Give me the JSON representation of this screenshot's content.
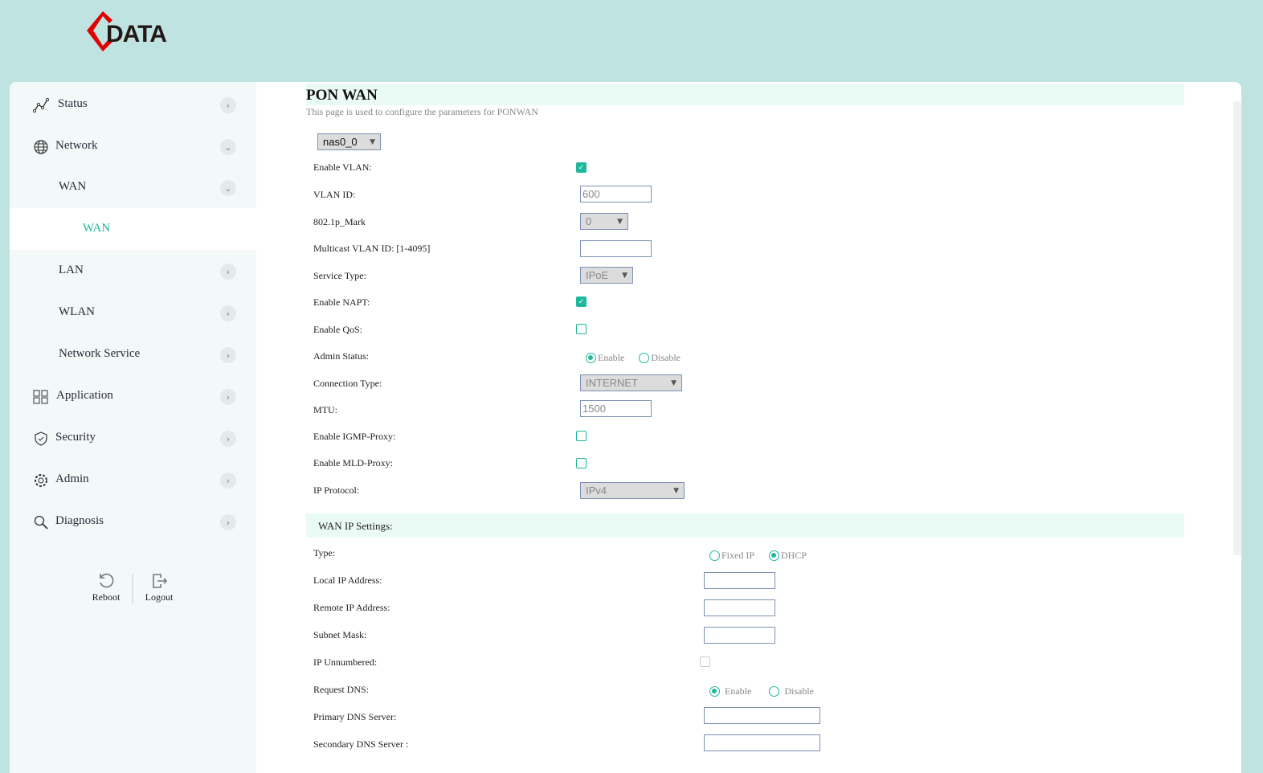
{
  "brand": {
    "logo_text": "DATA",
    "accent": "#e00000"
  },
  "colors": {
    "accent": "#1fb89a",
    "header_bg": "#bfe3e1"
  },
  "sidebar": {
    "items": [
      {
        "label": "Status",
        "icon": "status-chart-icon",
        "chevron": "right"
      },
      {
        "label": "Network",
        "icon": "globe-icon",
        "chevron": "down"
      },
      {
        "label": "WAN",
        "chevron": "down"
      },
      {
        "label": "WAN",
        "active": true
      },
      {
        "label": "LAN",
        "chevron": "right"
      },
      {
        "label": "WLAN",
        "chevron": "right"
      },
      {
        "label": "Network Service",
        "chevron": "right"
      },
      {
        "label": "Application",
        "icon": "grid-icon",
        "chevron": "right"
      },
      {
        "label": "Security",
        "icon": "shield-icon",
        "chevron": "right"
      },
      {
        "label": "Admin",
        "icon": "gear-icon",
        "chevron": "right"
      },
      {
        "label": "Diagnosis",
        "icon": "search-icon",
        "chevron": "right"
      }
    ],
    "reboot": "Reboot",
    "logout": "Logout"
  },
  "page": {
    "title": "PON WAN",
    "subtitle": "This page is used to configure the parameters for PONWAN",
    "interface": "nas0_0"
  },
  "form": {
    "enable_vlan": {
      "label": "Enable VLAN:",
      "checked": true
    },
    "vlan_id": {
      "label": "VLAN ID:",
      "value": "600"
    },
    "mark": {
      "label": "802.1p_Mark",
      "value": "0"
    },
    "mcast": {
      "label": "Multicast VLAN ID: [1-4095]",
      "value": ""
    },
    "service": {
      "label": "Service Type:",
      "value": "IPoE"
    },
    "napt": {
      "label": "Enable NAPT:",
      "checked": true
    },
    "qos": {
      "label": "Enable QoS:",
      "checked": false
    },
    "admin": {
      "label": "Admin Status:",
      "opt1": "Enable",
      "opt2": "Disable",
      "selected": "Enable"
    },
    "conn": {
      "label": "Connection Type:",
      "value": "INTERNET"
    },
    "mtu": {
      "label": "MTU:",
      "value": "1500"
    },
    "igmp": {
      "label": "Enable IGMP-Proxy:",
      "checked": false
    },
    "mld": {
      "label": "Enable MLD-Proxy:",
      "checked": false
    },
    "ipproto": {
      "label": "IP Protocol:",
      "value": "IPv4"
    }
  },
  "wanip": {
    "section": "WAN IP Settings:",
    "type": {
      "label": "Type:",
      "opt1": "Fixed IP",
      "opt2": "DHCP",
      "selected": "DHCP"
    },
    "local": {
      "label": "Local IP Address:",
      "value": ""
    },
    "remote": {
      "label": "Remote IP Address:",
      "value": ""
    },
    "mask": {
      "label": "Subnet Mask:",
      "value": ""
    },
    "unnum": {
      "label": "IP Unnumbered:",
      "checked": false
    },
    "reqdns": {
      "label": "Request DNS:",
      "opt1": "Enable",
      "opt2": "Disable",
      "selected": "Enable"
    },
    "dns1": {
      "label": "Primary DNS Server:",
      "value": ""
    },
    "dns2": {
      "label": "Secondary DNS Server :",
      "value": ""
    }
  }
}
